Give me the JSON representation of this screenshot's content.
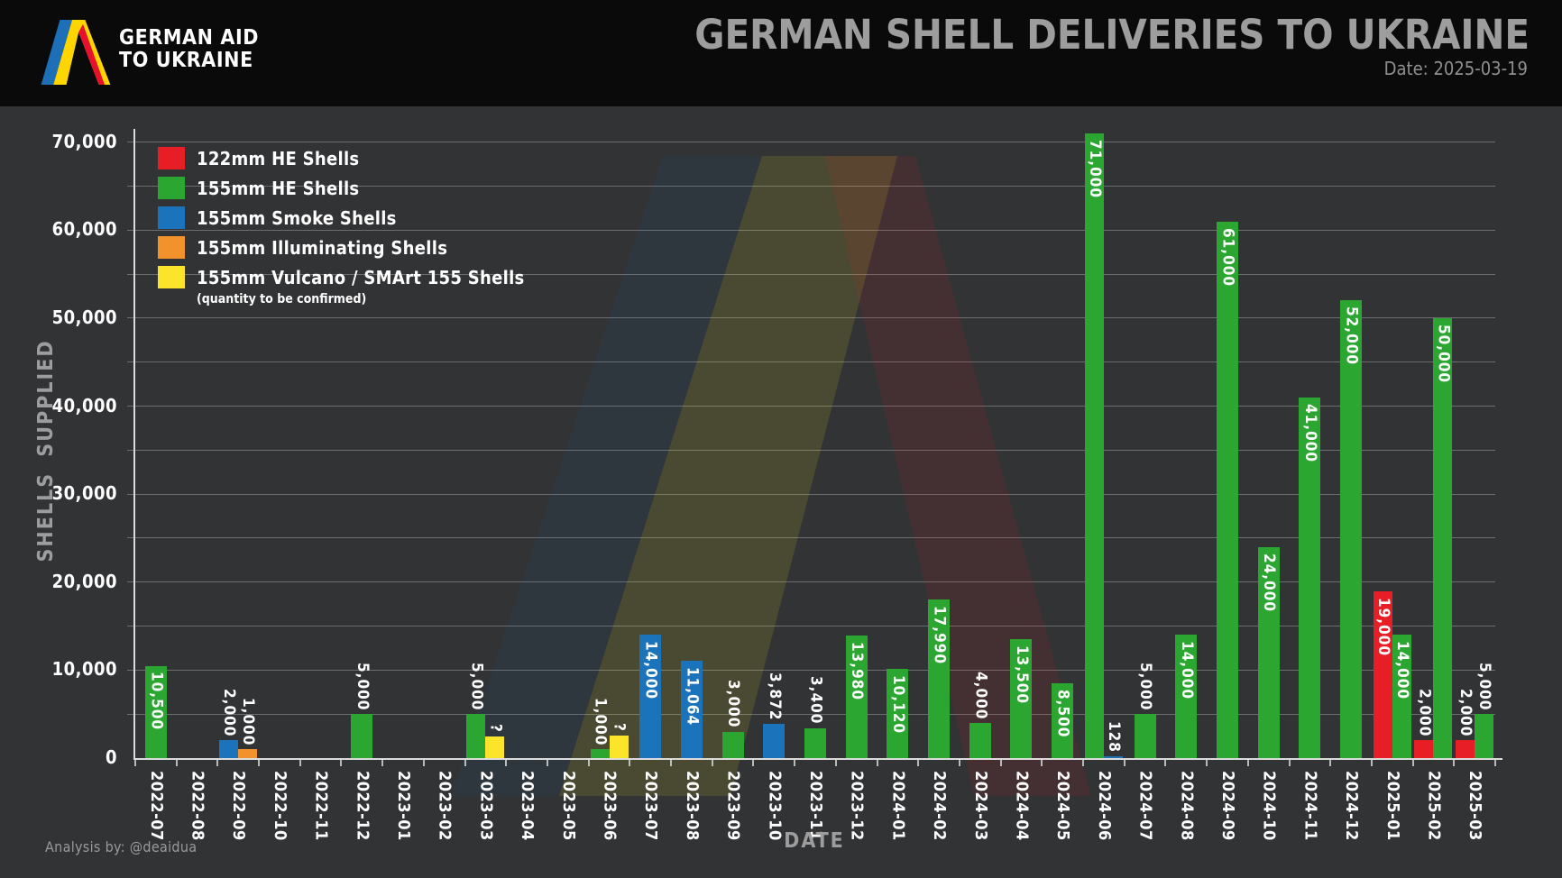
{
  "header": {
    "logo_line1": "GERMAN AID",
    "logo_line2": "TO UKRAINE",
    "title": "GERMAN SHELL DELIVERIES TO UKRAINE",
    "date": "Date: 2025-03-19"
  },
  "footer": {
    "credit": "Analysis by: @deaidua"
  },
  "colors": {
    "red": "#e81e26",
    "green": "#2aa631",
    "blue": "#1b74bb",
    "orange": "#f2922a",
    "yellow": "#fbe42a",
    "background": "#313335",
    "header_bg": "#0a0a0b",
    "grid": "#6b6d6f",
    "axis": "#dcdcdc",
    "muted_text": "#9d9d9d"
  },
  "legend": [
    {
      "key": "red",
      "label": "122mm HE Shells"
    },
    {
      "key": "green",
      "label": "155mm HE Shells"
    },
    {
      "key": "blue",
      "label": "155mm Smoke Shells"
    },
    {
      "key": "orange",
      "label": "155mm Illuminating Shells"
    },
    {
      "key": "yellow",
      "label": "155mm Vulcano / SMArt 155 Shells",
      "note": "(quantity to be confirmed)"
    }
  ],
  "chart_data": {
    "type": "bar",
    "title": "GERMAN SHELL DELIVERIES TO UKRAINE",
    "xlabel": "DATE",
    "ylabel": "SHELLS SUPPLIED",
    "ylim": [
      0,
      71500
    ],
    "ytick_label_step": 10000,
    "gridline_step": 5000,
    "grid": "on",
    "legend_position": "upper-left",
    "label_inside_min_value": 8500,
    "categories": [
      "2022-07",
      "2022-08",
      "2022-09",
      "2022-10",
      "2022-11",
      "2022-12",
      "2023-01",
      "2023-02",
      "2023-03",
      "2023-04",
      "2023-05",
      "2023-06",
      "2023-07",
      "2023-08",
      "2023-09",
      "2023-10",
      "2023-11",
      "2023-12",
      "2024-01",
      "2024-02",
      "2024-03",
      "2024-04",
      "2024-05",
      "2024-06",
      "2024-07",
      "2024-08",
      "2024-09",
      "2024-10",
      "2024-11",
      "2024-12",
      "2025-01",
      "2025-02",
      "2025-03"
    ],
    "months": [
      {
        "date": "2022-07",
        "bars": [
          {
            "color": "green",
            "series": "155mm HE Shells",
            "value": 10500,
            "label": "10,500"
          }
        ]
      },
      {
        "date": "2022-08",
        "bars": []
      },
      {
        "date": "2022-09",
        "bars": [
          {
            "color": "blue",
            "series": "155mm Smoke Shells",
            "value": 2000,
            "label": "2,000"
          },
          {
            "color": "orange",
            "series": "155mm Illuminating Shells",
            "value": 1000,
            "label": "1,000"
          }
        ]
      },
      {
        "date": "2022-10",
        "bars": []
      },
      {
        "date": "2022-11",
        "bars": []
      },
      {
        "date": "2022-12",
        "bars": [
          {
            "color": "green",
            "series": "155mm HE Shells",
            "value": 5000,
            "label": "5,000"
          }
        ]
      },
      {
        "date": "2023-01",
        "bars": []
      },
      {
        "date": "2023-02",
        "bars": []
      },
      {
        "date": "2023-03",
        "bars": [
          {
            "color": "green",
            "series": "155mm HE Shells",
            "value": 5000,
            "label": "5,000"
          },
          {
            "color": "yellow",
            "series": "155mm Vulcano / SMArt 155 Shells",
            "value": 2500,
            "label": "?",
            "estimated": true
          }
        ]
      },
      {
        "date": "2023-04",
        "bars": []
      },
      {
        "date": "2023-05",
        "bars": []
      },
      {
        "date": "2023-06",
        "bars": [
          {
            "color": "green",
            "series": "155mm HE Shells",
            "value": 1000,
            "label": "1,000"
          },
          {
            "color": "yellow",
            "series": "155mm Vulcano / SMArt 155 Shells",
            "value": 2600,
            "label": "?",
            "estimated": true
          }
        ]
      },
      {
        "date": "2023-07",
        "bars": [
          {
            "color": "blue",
            "series": "155mm Smoke Shells",
            "value": 14000,
            "label": "14,000"
          }
        ]
      },
      {
        "date": "2023-08",
        "bars": [
          {
            "color": "blue",
            "series": "155mm Smoke Shells",
            "value": 11064,
            "label": "11,064"
          }
        ]
      },
      {
        "date": "2023-09",
        "bars": [
          {
            "color": "green",
            "series": "155mm HE Shells",
            "value": 3000,
            "label": "3,000"
          }
        ]
      },
      {
        "date": "2023-10",
        "bars": [
          {
            "color": "blue",
            "series": "155mm Smoke Shells",
            "value": 3872,
            "label": "3,872"
          }
        ]
      },
      {
        "date": "2023-11",
        "bars": [
          {
            "color": "green",
            "series": "155mm HE Shells",
            "value": 3400,
            "label": "3,400"
          }
        ]
      },
      {
        "date": "2023-12",
        "bars": [
          {
            "color": "green",
            "series": "155mm HE Shells",
            "value": 13980,
            "label": "13,980"
          }
        ]
      },
      {
        "date": "2024-01",
        "bars": [
          {
            "color": "green",
            "series": "155mm HE Shells",
            "value": 10120,
            "label": "10,120"
          }
        ]
      },
      {
        "date": "2024-02",
        "bars": [
          {
            "color": "green",
            "series": "155mm HE Shells",
            "value": 17990,
            "label": "17,990"
          }
        ]
      },
      {
        "date": "2024-03",
        "bars": [
          {
            "color": "green",
            "series": "155mm HE Shells",
            "value": 4000,
            "label": "4,000"
          }
        ]
      },
      {
        "date": "2024-04",
        "bars": [
          {
            "color": "green",
            "series": "155mm HE Shells",
            "value": 13500,
            "label": "13,500"
          }
        ]
      },
      {
        "date": "2024-05",
        "bars": [
          {
            "color": "green",
            "series": "155mm HE Shells",
            "value": 8500,
            "label": "8,500"
          }
        ]
      },
      {
        "date": "2024-06",
        "bars": [
          {
            "color": "green",
            "series": "155mm HE Shells",
            "value": 71000,
            "label": "71,000"
          },
          {
            "color": "blue",
            "series": "155mm Smoke Shells",
            "value": 128,
            "label": "128"
          }
        ]
      },
      {
        "date": "2024-07",
        "bars": [
          {
            "color": "green",
            "series": "155mm HE Shells",
            "value": 5000,
            "label": "5,000"
          }
        ]
      },
      {
        "date": "2024-08",
        "bars": [
          {
            "color": "green",
            "series": "155mm HE Shells",
            "value": 14000,
            "label": "14,000"
          }
        ]
      },
      {
        "date": "2024-09",
        "bars": [
          {
            "color": "green",
            "series": "155mm HE Shells",
            "value": 61000,
            "label": "61,000"
          }
        ]
      },
      {
        "date": "2024-10",
        "bars": [
          {
            "color": "green",
            "series": "155mm HE Shells",
            "value": 24000,
            "label": "24,000"
          }
        ]
      },
      {
        "date": "2024-11",
        "bars": [
          {
            "color": "green",
            "series": "155mm HE Shells",
            "value": 41000,
            "label": "41,000"
          }
        ]
      },
      {
        "date": "2024-12",
        "bars": [
          {
            "color": "green",
            "series": "155mm HE Shells",
            "value": 52000,
            "label": "52,000"
          }
        ]
      },
      {
        "date": "2025-01",
        "bars": [
          {
            "color": "red",
            "series": "122mm HE Shells",
            "value": 19000,
            "label": "19,000"
          },
          {
            "color": "green",
            "series": "155mm HE Shells",
            "value": 14000,
            "label": "14,000"
          }
        ]
      },
      {
        "date": "2025-02",
        "bars": [
          {
            "color": "red",
            "series": "122mm HE Shells",
            "value": 2000,
            "label": "2,000"
          },
          {
            "color": "green",
            "series": "155mm HE Shells",
            "value": 50000,
            "label": "50,000"
          }
        ]
      },
      {
        "date": "2025-03",
        "bars": [
          {
            "color": "red",
            "series": "122mm HE Shells",
            "value": 2000,
            "label": "2,000"
          },
          {
            "color": "green",
            "series": "155mm HE Shells",
            "value": 5000,
            "label": "5,000"
          }
        ]
      }
    ]
  }
}
